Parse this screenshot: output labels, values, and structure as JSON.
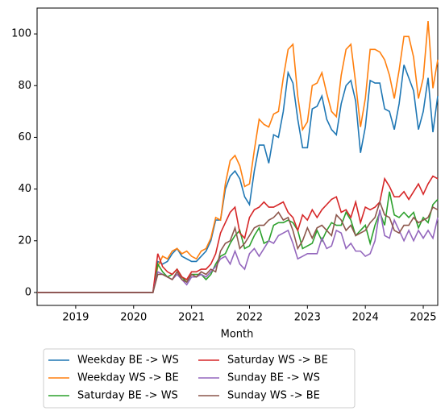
{
  "chart_data": {
    "type": "line",
    "xlabel": "Month",
    "x": [
      "2018-05",
      "2018-06",
      "2018-07",
      "2018-08",
      "2018-09",
      "2018-10",
      "2018-11",
      "2018-12",
      "2019-01",
      "2019-02",
      "2019-03",
      "2019-04",
      "2019-05",
      "2019-06",
      "2019-07",
      "2019-08",
      "2019-09",
      "2019-10",
      "2019-11",
      "2019-12",
      "2020-01",
      "2020-02",
      "2020-03",
      "2020-04",
      "2020-05",
      "2020-06",
      "2020-07",
      "2020-08",
      "2020-09",
      "2020-10",
      "2020-11",
      "2020-12",
      "2021-01",
      "2021-02",
      "2021-03",
      "2021-04",
      "2021-05",
      "2021-06",
      "2021-07",
      "2021-08",
      "2021-09",
      "2021-10",
      "2021-11",
      "2021-12",
      "2022-01",
      "2022-02",
      "2022-03",
      "2022-04",
      "2022-05",
      "2022-06",
      "2022-07",
      "2022-08",
      "2022-09",
      "2022-10",
      "2022-11",
      "2022-12",
      "2023-01",
      "2023-02",
      "2023-03",
      "2023-04",
      "2023-05",
      "2023-06",
      "2023-07",
      "2023-08",
      "2023-09",
      "2023-10",
      "2023-11",
      "2023-12",
      "2024-01",
      "2024-02",
      "2024-03",
      "2024-04",
      "2024-05",
      "2024-06",
      "2024-07",
      "2024-08",
      "2024-09",
      "2024-10",
      "2024-11",
      "2024-12",
      "2025-01",
      "2025-02",
      "2025-03",
      "2025-04"
    ],
    "series": [
      {
        "name": "Weekday BE -> WS",
        "color": "#1f77b4",
        "values": [
          0,
          0,
          0,
          0,
          0,
          0,
          0,
          0,
          0,
          0,
          0,
          0,
          0,
          0,
          0,
          0,
          0,
          0,
          0,
          0,
          0,
          0,
          0,
          0,
          0,
          12,
          11,
          12,
          15,
          17,
          14,
          13,
          12,
          12,
          14,
          16,
          20,
          28,
          28,
          40,
          45,
          47,
          44,
          37,
          34,
          47,
          57,
          57,
          50,
          61,
          60,
          70,
          85,
          81,
          67,
          56,
          56,
          71,
          72,
          76,
          67,
          63,
          61,
          73,
          80,
          82,
          74,
          54,
          64,
          82,
          81,
          81,
          71,
          70,
          63,
          73,
          88,
          83,
          78,
          63,
          70,
          83,
          62,
          76
        ]
      },
      {
        "name": "Weekday WS -> BE",
        "color": "#ff7f0e",
        "values": [
          0,
          0,
          0,
          0,
          0,
          0,
          0,
          0,
          0,
          0,
          0,
          0,
          0,
          0,
          0,
          0,
          0,
          0,
          0,
          0,
          0,
          0,
          0,
          0,
          0,
          10,
          14,
          13,
          16,
          17,
          15,
          16,
          14,
          13,
          16,
          17,
          21,
          29,
          28,
          42,
          51,
          53,
          49,
          41,
          42,
          55,
          67,
          65,
          64,
          69,
          70,
          83,
          94,
          96,
          76,
          63,
          66,
          80,
          81,
          85,
          77,
          70,
          68,
          84,
          94,
          96,
          81,
          64,
          75,
          94,
          94,
          93,
          90,
          84,
          75,
          86,
          99,
          99,
          91,
          75,
          83,
          105,
          79,
          90
        ]
      },
      {
        "name": "Saturday BE -> WS",
        "color": "#2ca02c",
        "values": [
          0,
          0,
          0,
          0,
          0,
          0,
          0,
          0,
          0,
          0,
          0,
          0,
          0,
          0,
          0,
          0,
          0,
          0,
          0,
          0,
          0,
          0,
          0,
          0,
          0,
          11,
          8,
          6,
          7,
          9,
          6,
          4,
          7,
          7,
          7,
          5,
          7,
          11,
          14,
          15,
          19,
          22,
          24,
          17,
          18,
          22,
          25,
          19,
          20,
          26,
          27,
          27,
          28,
          27,
          24,
          17,
          18,
          19,
          24,
          20,
          24,
          27,
          26,
          26,
          31,
          28,
          22,
          24,
          26,
          19,
          26,
          31,
          26,
          39,
          30,
          29,
          31,
          29,
          31,
          25,
          29,
          27,
          34,
          36
        ]
      },
      {
        "name": "Saturday WS -> BE",
        "color": "#d62728",
        "values": [
          0,
          0,
          0,
          0,
          0,
          0,
          0,
          0,
          0,
          0,
          0,
          0,
          0,
          0,
          0,
          0,
          0,
          0,
          0,
          0,
          0,
          0,
          0,
          0,
          0,
          15,
          10,
          8,
          7,
          9,
          6,
          5,
          8,
          8,
          9,
          9,
          11,
          15,
          23,
          27,
          31,
          33,
          23,
          21,
          29,
          32,
          33,
          35,
          33,
          33,
          34,
          35,
          31,
          29,
          24,
          30,
          28,
          32,
          29,
          32,
          34,
          36,
          37,
          31,
          32,
          29,
          35,
          27,
          33,
          32,
          33,
          35,
          44,
          41,
          37,
          37,
          39,
          36,
          39,
          42,
          38,
          42,
          45,
          44
        ]
      },
      {
        "name": "Sunday BE -> WS",
        "color": "#9467bd",
        "values": [
          0,
          0,
          0,
          0,
          0,
          0,
          0,
          0,
          0,
          0,
          0,
          0,
          0,
          0,
          0,
          0,
          0,
          0,
          0,
          0,
          0,
          0,
          0,
          0,
          0,
          8,
          7,
          6,
          5,
          7,
          5,
          3,
          6,
          6,
          7,
          6,
          8,
          10,
          13,
          14,
          11,
          16,
          11,
          9,
          15,
          17,
          14,
          17,
          20,
          19,
          22,
          23,
          24,
          19,
          13,
          14,
          15,
          15,
          15,
          21,
          17,
          18,
          24,
          23,
          17,
          19,
          16,
          16,
          14,
          15,
          20,
          32,
          22,
          21,
          28,
          24,
          20,
          24,
          20,
          24,
          21,
          24,
          21,
          29
        ]
      },
      {
        "name": "Sunday WS -> BE",
        "color": "#8c564b",
        "values": [
          0,
          0,
          0,
          0,
          0,
          0,
          0,
          0,
          0,
          0,
          0,
          0,
          0,
          0,
          0,
          0,
          0,
          0,
          0,
          0,
          0,
          0,
          0,
          0,
          0,
          7,
          7,
          6,
          5,
          8,
          5,
          4,
          7,
          6,
          8,
          7,
          9,
          8,
          16,
          19,
          20,
          25,
          17,
          19,
          22,
          25,
          26,
          26,
          28,
          29,
          31,
          28,
          29,
          24,
          17,
          20,
          25,
          21,
          25,
          26,
          24,
          22,
          30,
          28,
          24,
          26,
          22,
          23,
          24,
          27,
          29,
          35,
          30,
          29,
          24,
          23,
          26,
          26,
          29,
          27,
          28,
          29,
          33,
          32
        ]
      }
    ],
    "xlim": [
      "2018-05",
      "2025-04"
    ],
    "xticks": [
      {
        "value": "2019-01",
        "label": "2019"
      },
      {
        "value": "2020-01",
        "label": "2020"
      },
      {
        "value": "2021-01",
        "label": "2021"
      },
      {
        "value": "2022-01",
        "label": "2022"
      },
      {
        "value": "2023-01",
        "label": "2023"
      },
      {
        "value": "2024-01",
        "label": "2024"
      },
      {
        "value": "2025-01",
        "label": "2025"
      }
    ],
    "ylim": [
      -5,
      110
    ],
    "yticks": [
      0,
      20,
      40,
      60,
      80,
      100
    ],
    "legend": "lower center"
  }
}
